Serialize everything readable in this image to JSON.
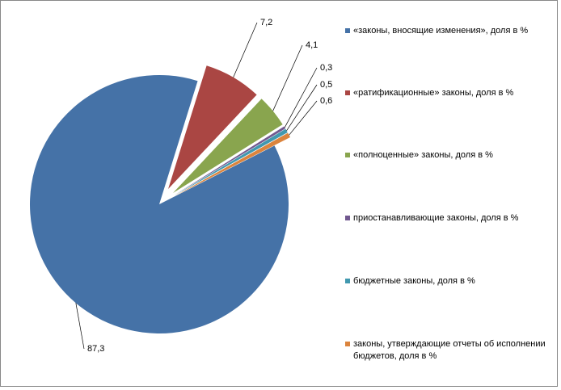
{
  "chart_data": {
    "type": "pie",
    "categories": [
      "«законы, вносящие изменения», доля в %",
      "«ратификационные» законы, доля в %",
      "«полноценные» законы, доля в %",
      "приостанавливающие законы, доля в %",
      "бюджетные законы, доля в %",
      "законы, утверждающие отчеты об исполнении бюджетов, доля в %"
    ],
    "values": [
      87.3,
      7.2,
      4.1,
      0.3,
      0.5,
      0.6
    ],
    "value_labels": [
      "87,3",
      "7,2",
      "4,1",
      "0,3",
      "0,5",
      "0,6"
    ],
    "colors": [
      "#4572a7",
      "#aa4643",
      "#89a54e",
      "#71588f",
      "#4198af",
      "#db843d"
    ],
    "legend": "right"
  }
}
